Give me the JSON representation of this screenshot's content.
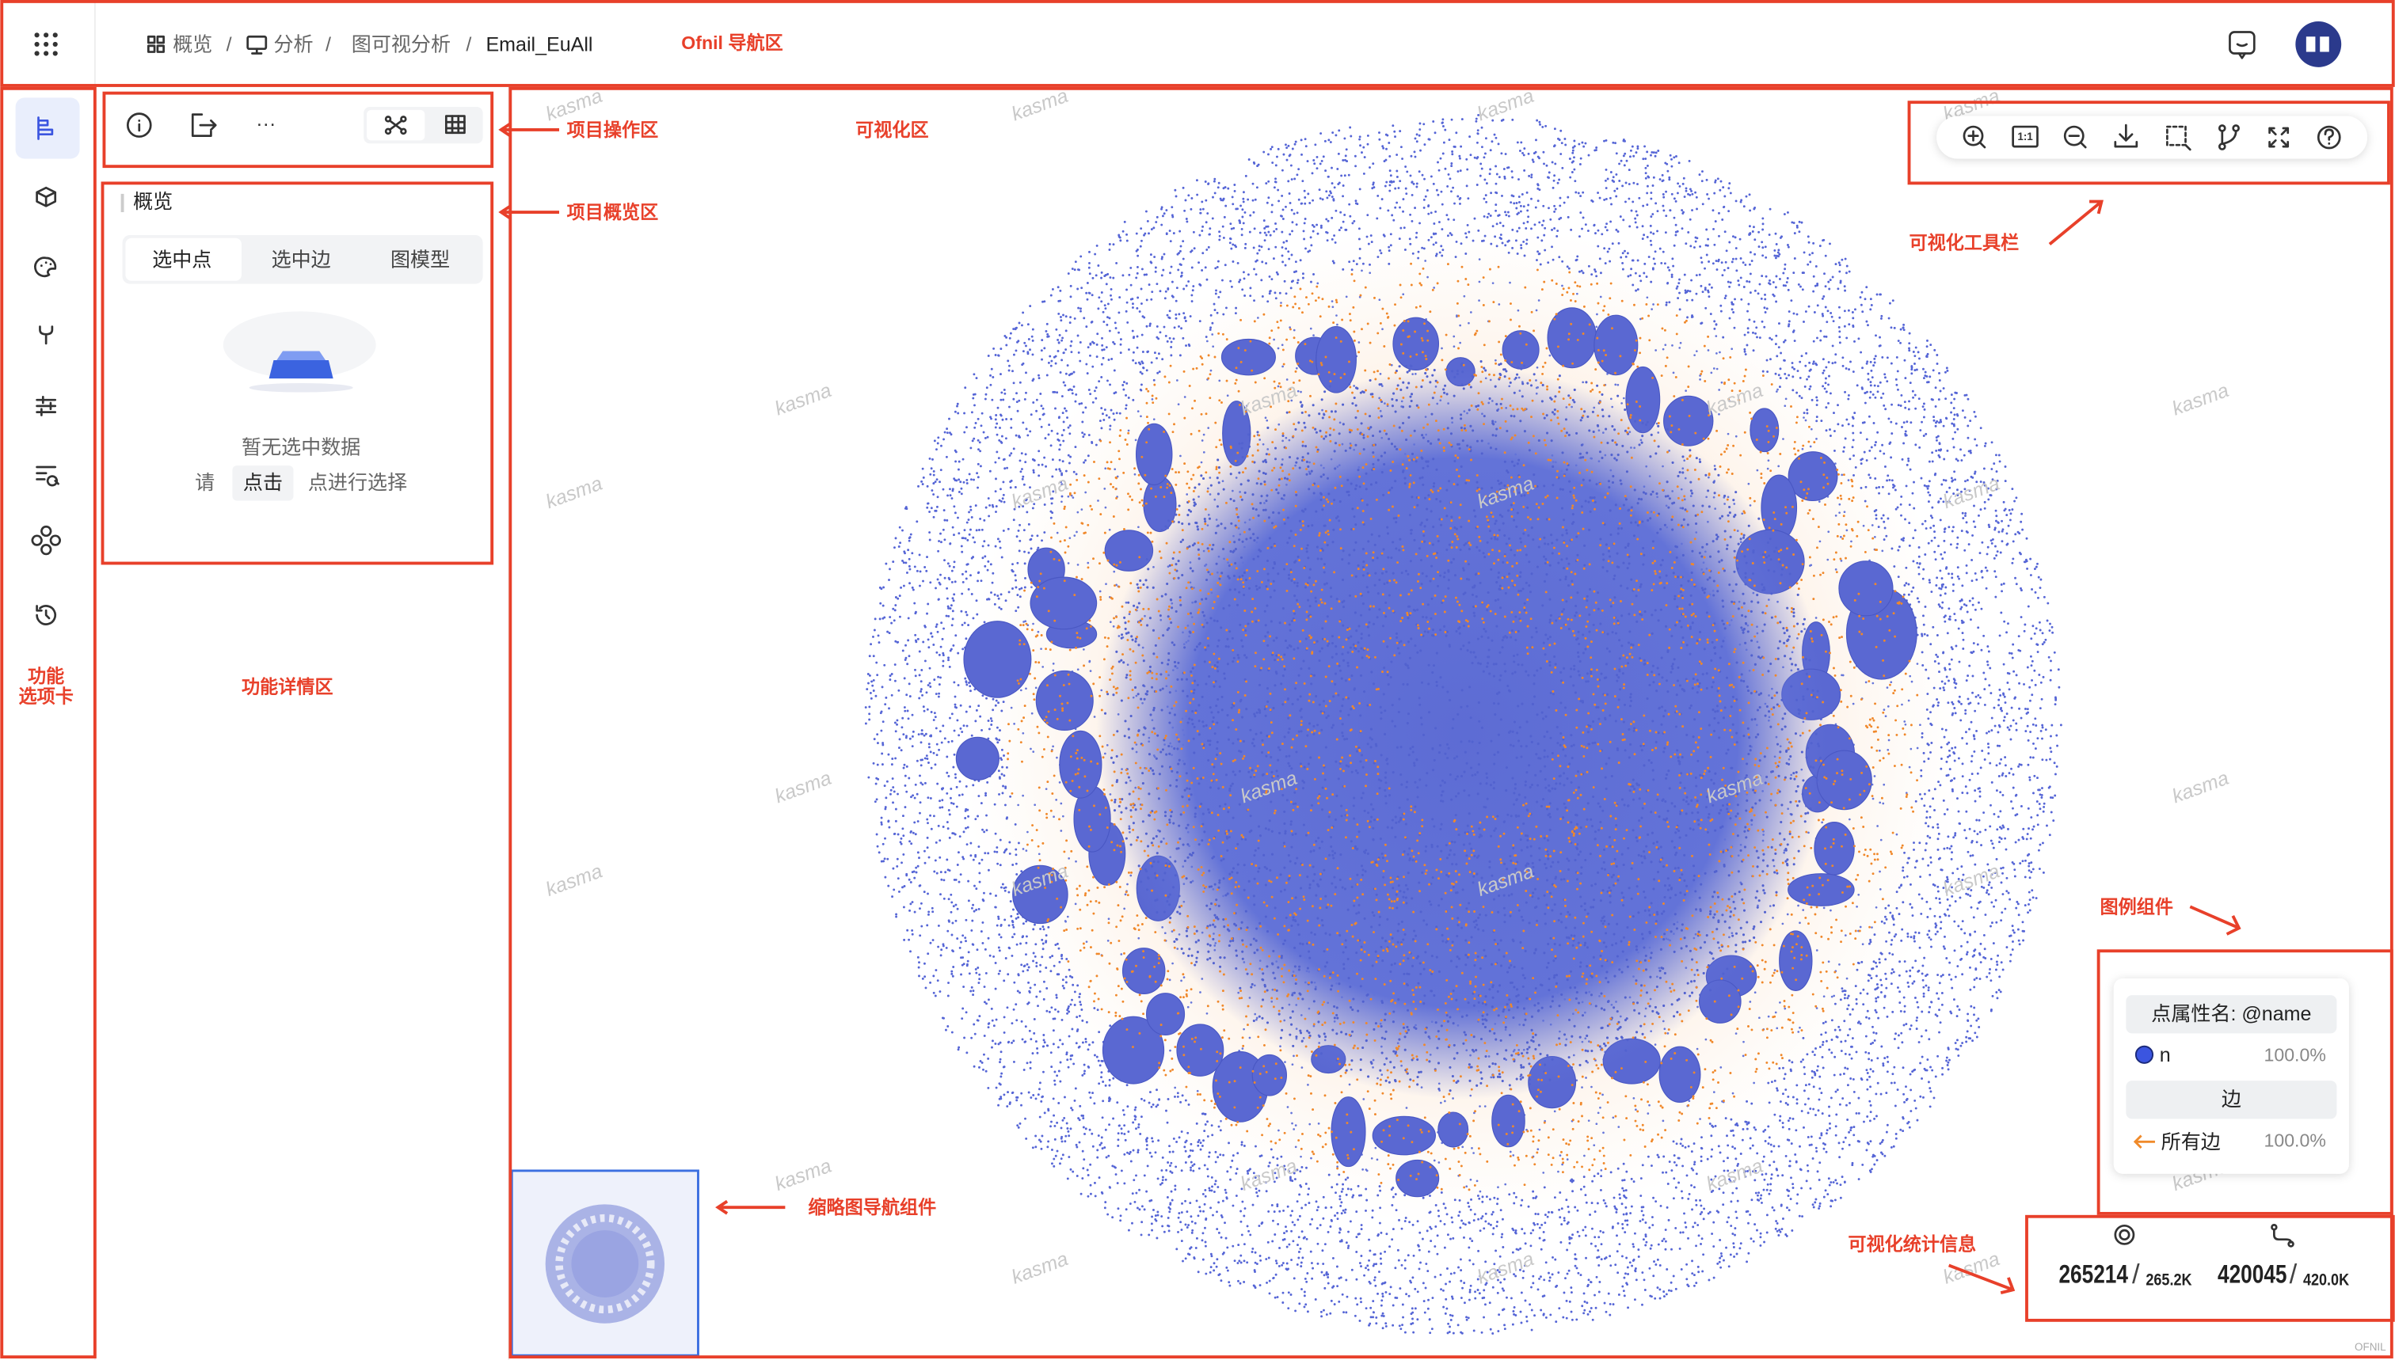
{
  "nav": {
    "breadcrumb": [
      "概览",
      "分析",
      "图可视分析",
      "Email_EuAll"
    ]
  },
  "annotations": {
    "nav_area": "Ofnil 导航区",
    "operation_area": "项目操作区",
    "viz_area": "可视化区",
    "overview_area": "项目概览区",
    "toolbar": "可视化工具栏",
    "tabs_area": [
      "功能",
      "选项卡"
    ],
    "detail_area": "功能详情区",
    "legend": "图例组件",
    "minimap": "缩略图导航组件",
    "stats": "可视化统计信息"
  },
  "overview": {
    "title": "概览",
    "tabs": [
      "选中点",
      "选中边",
      "图模型"
    ],
    "empty": "暂无选中数据",
    "hint": [
      "请",
      "点击",
      "点进行选择"
    ]
  },
  "toolbar": {
    "actual_size": "1:1"
  },
  "legend": {
    "node_header": "点属性名: @name",
    "node_items": [
      {
        "label": "n",
        "percent": "100.0%"
      }
    ],
    "edge_header": "边",
    "edge_items": [
      {
        "label": "所有边",
        "percent": "100.0%"
      }
    ]
  },
  "stats": {
    "nodes_shown": "265214",
    "nodes_total": "265.2K",
    "edges_shown": "420045",
    "edges_total": "420.0K"
  },
  "watermark": "kasma",
  "footer": "OFNIL"
}
